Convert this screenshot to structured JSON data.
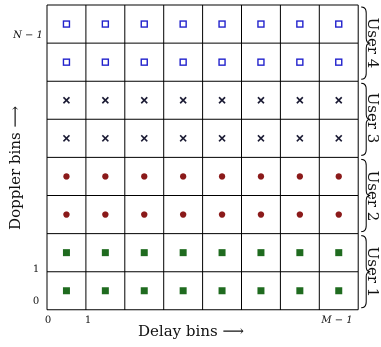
{
  "grid": {
    "cols": 8,
    "rows": 8,
    "row_users": [
      1,
      1,
      2,
      2,
      3,
      3,
      4,
      4
    ]
  },
  "axes": {
    "x_label": "Delay bins ⟶",
    "y_label": "Doppler bins ⟶",
    "x_ticks": [
      "0",
      "1",
      "M − 1"
    ],
    "y_ticks": [
      "0",
      "1",
      "N − 1"
    ]
  },
  "users": [
    {
      "name": "User 1",
      "marker": "filled-square",
      "color": "#1f6b1f"
    },
    {
      "name": "User 2",
      "marker": "filled-circle",
      "color": "#8b1a1a"
    },
    {
      "name": "User 3",
      "marker": "cross",
      "color": "#1a1a33"
    },
    {
      "name": "User 4",
      "marker": "hollow-square",
      "color": "#2222cc"
    }
  ]
}
